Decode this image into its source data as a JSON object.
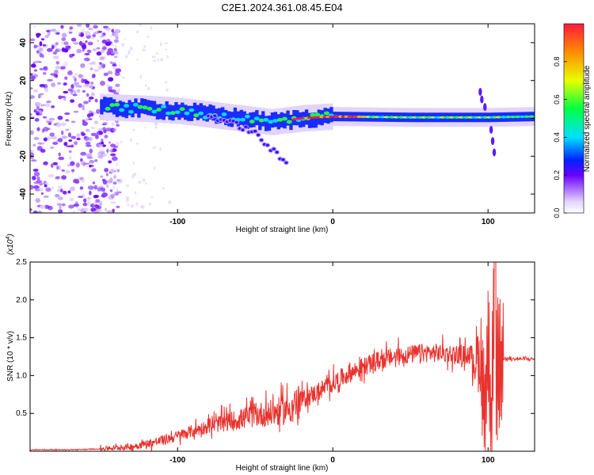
{
  "title": "C2E1.2024.361.08.45.E04",
  "chart_data": [
    {
      "type": "heatmap",
      "xlabel": "Height of straight line (km)",
      "ylabel": "Frequency (Hz)",
      "xlim": [
        -195,
        130
      ],
      "ylim": [
        -50,
        50
      ],
      "xticks": [
        -100,
        0,
        100
      ],
      "yticks": [
        -40,
        -20,
        0,
        20,
        40
      ],
      "colorbar": {
        "label": "Normalized spectral amplitude",
        "range": [
          0,
          1
        ],
        "ticks": [
          0.0,
          0.2,
          0.4,
          0.6,
          0.8
        ]
      },
      "main_band_center_hz": [
        [
          -150,
          6
        ],
        [
          -120,
          5
        ],
        [
          -100,
          4
        ],
        [
          -80,
          2
        ],
        [
          -60,
          0
        ],
        [
          -40,
          -2
        ],
        [
          -20,
          0
        ],
        [
          0,
          1
        ],
        [
          50,
          0.5
        ],
        [
          100,
          0.5
        ],
        [
          130,
          1
        ]
      ],
      "diverging_branch_hz": [
        [
          -80,
          2
        ],
        [
          -60,
          -4
        ],
        [
          -50,
          -8
        ],
        [
          -40,
          -16
        ],
        [
          -30,
          -24
        ]
      ],
      "noise_region_km": [
        -195,
        -145
      ]
    },
    {
      "type": "line",
      "xlabel": "Height of straight line (km)",
      "ylabel": "SNR (10 * v/v)",
      "yscale_label": "(x10",
      "yscale_exp": "4",
      "scale_close": ")",
      "xlim": [
        -195,
        130
      ],
      "ylim": [
        0,
        2.5
      ],
      "xticks": [
        -100,
        0,
        100
      ],
      "yticks": [
        0.5,
        1.0,
        1.5,
        2.0,
        2.5
      ],
      "color": "#e8332e",
      "x": [
        -195,
        -170,
        -150,
        -130,
        -120,
        -110,
        -100,
        -90,
        -80,
        -70,
        -60,
        -50,
        -40,
        -30,
        -20,
        -10,
        0,
        10,
        20,
        30,
        40,
        50,
        60,
        70,
        80,
        90,
        95,
        98,
        100,
        102,
        104,
        106,
        110,
        120,
        130
      ],
      "values": [
        0.02,
        0.02,
        0.03,
        0.06,
        0.1,
        0.14,
        0.2,
        0.27,
        0.33,
        0.38,
        0.42,
        0.48,
        0.5,
        0.55,
        0.68,
        0.78,
        0.9,
        1.02,
        1.12,
        1.2,
        1.25,
        1.28,
        1.3,
        1.3,
        1.28,
        1.28,
        1.2,
        0.55,
        1.4,
        0.3,
        1.8,
        1.0,
        1.22,
        1.22,
        1.22
      ]
    }
  ]
}
